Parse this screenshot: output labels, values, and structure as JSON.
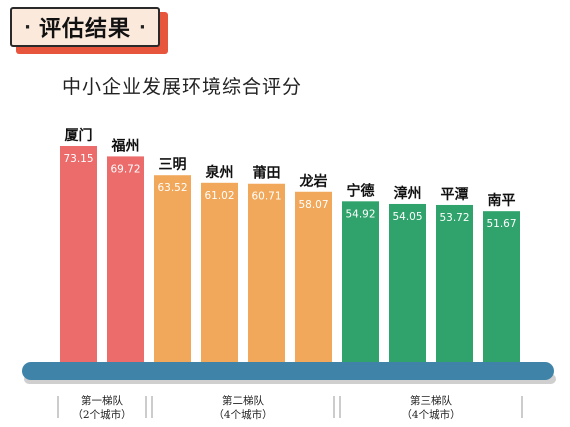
{
  "header": {
    "dot_left": "·",
    "title": "评估结果",
    "dot_right": "·"
  },
  "chart_data": {
    "type": "bar",
    "title": "中小企业发展环境综合评分",
    "categories": [
      "厦门",
      "福州",
      "三明",
      "泉州",
      "莆田",
      "龙岩",
      "宁德",
      "漳州",
      "平潭",
      "南平"
    ],
    "values": [
      73.15,
      69.72,
      63.52,
      61.02,
      60.71,
      58.07,
      54.92,
      54.05,
      53.72,
      51.67
    ],
    "value_labels": [
      "73.15",
      "69.72",
      "63.52",
      "61.02",
      "60.71",
      "58.07",
      "54.92",
      "54.05",
      "53.72",
      "51.67"
    ],
    "tiers": [
      {
        "line1": "第一梯队",
        "line2": "（2个城市）",
        "from": 0,
        "to": 1,
        "color": "#ec6b6b"
      },
      {
        "line1": "第二梯队",
        "line2": "（4个城市）",
        "from": 2,
        "to": 5,
        "color": "#f2a85a"
      },
      {
        "line1": "第三梯队",
        "line2": "（4个城市）",
        "from": 6,
        "to": 9,
        "color": "#2fa36b"
      }
    ],
    "base_color": "#3f84a8"
  }
}
